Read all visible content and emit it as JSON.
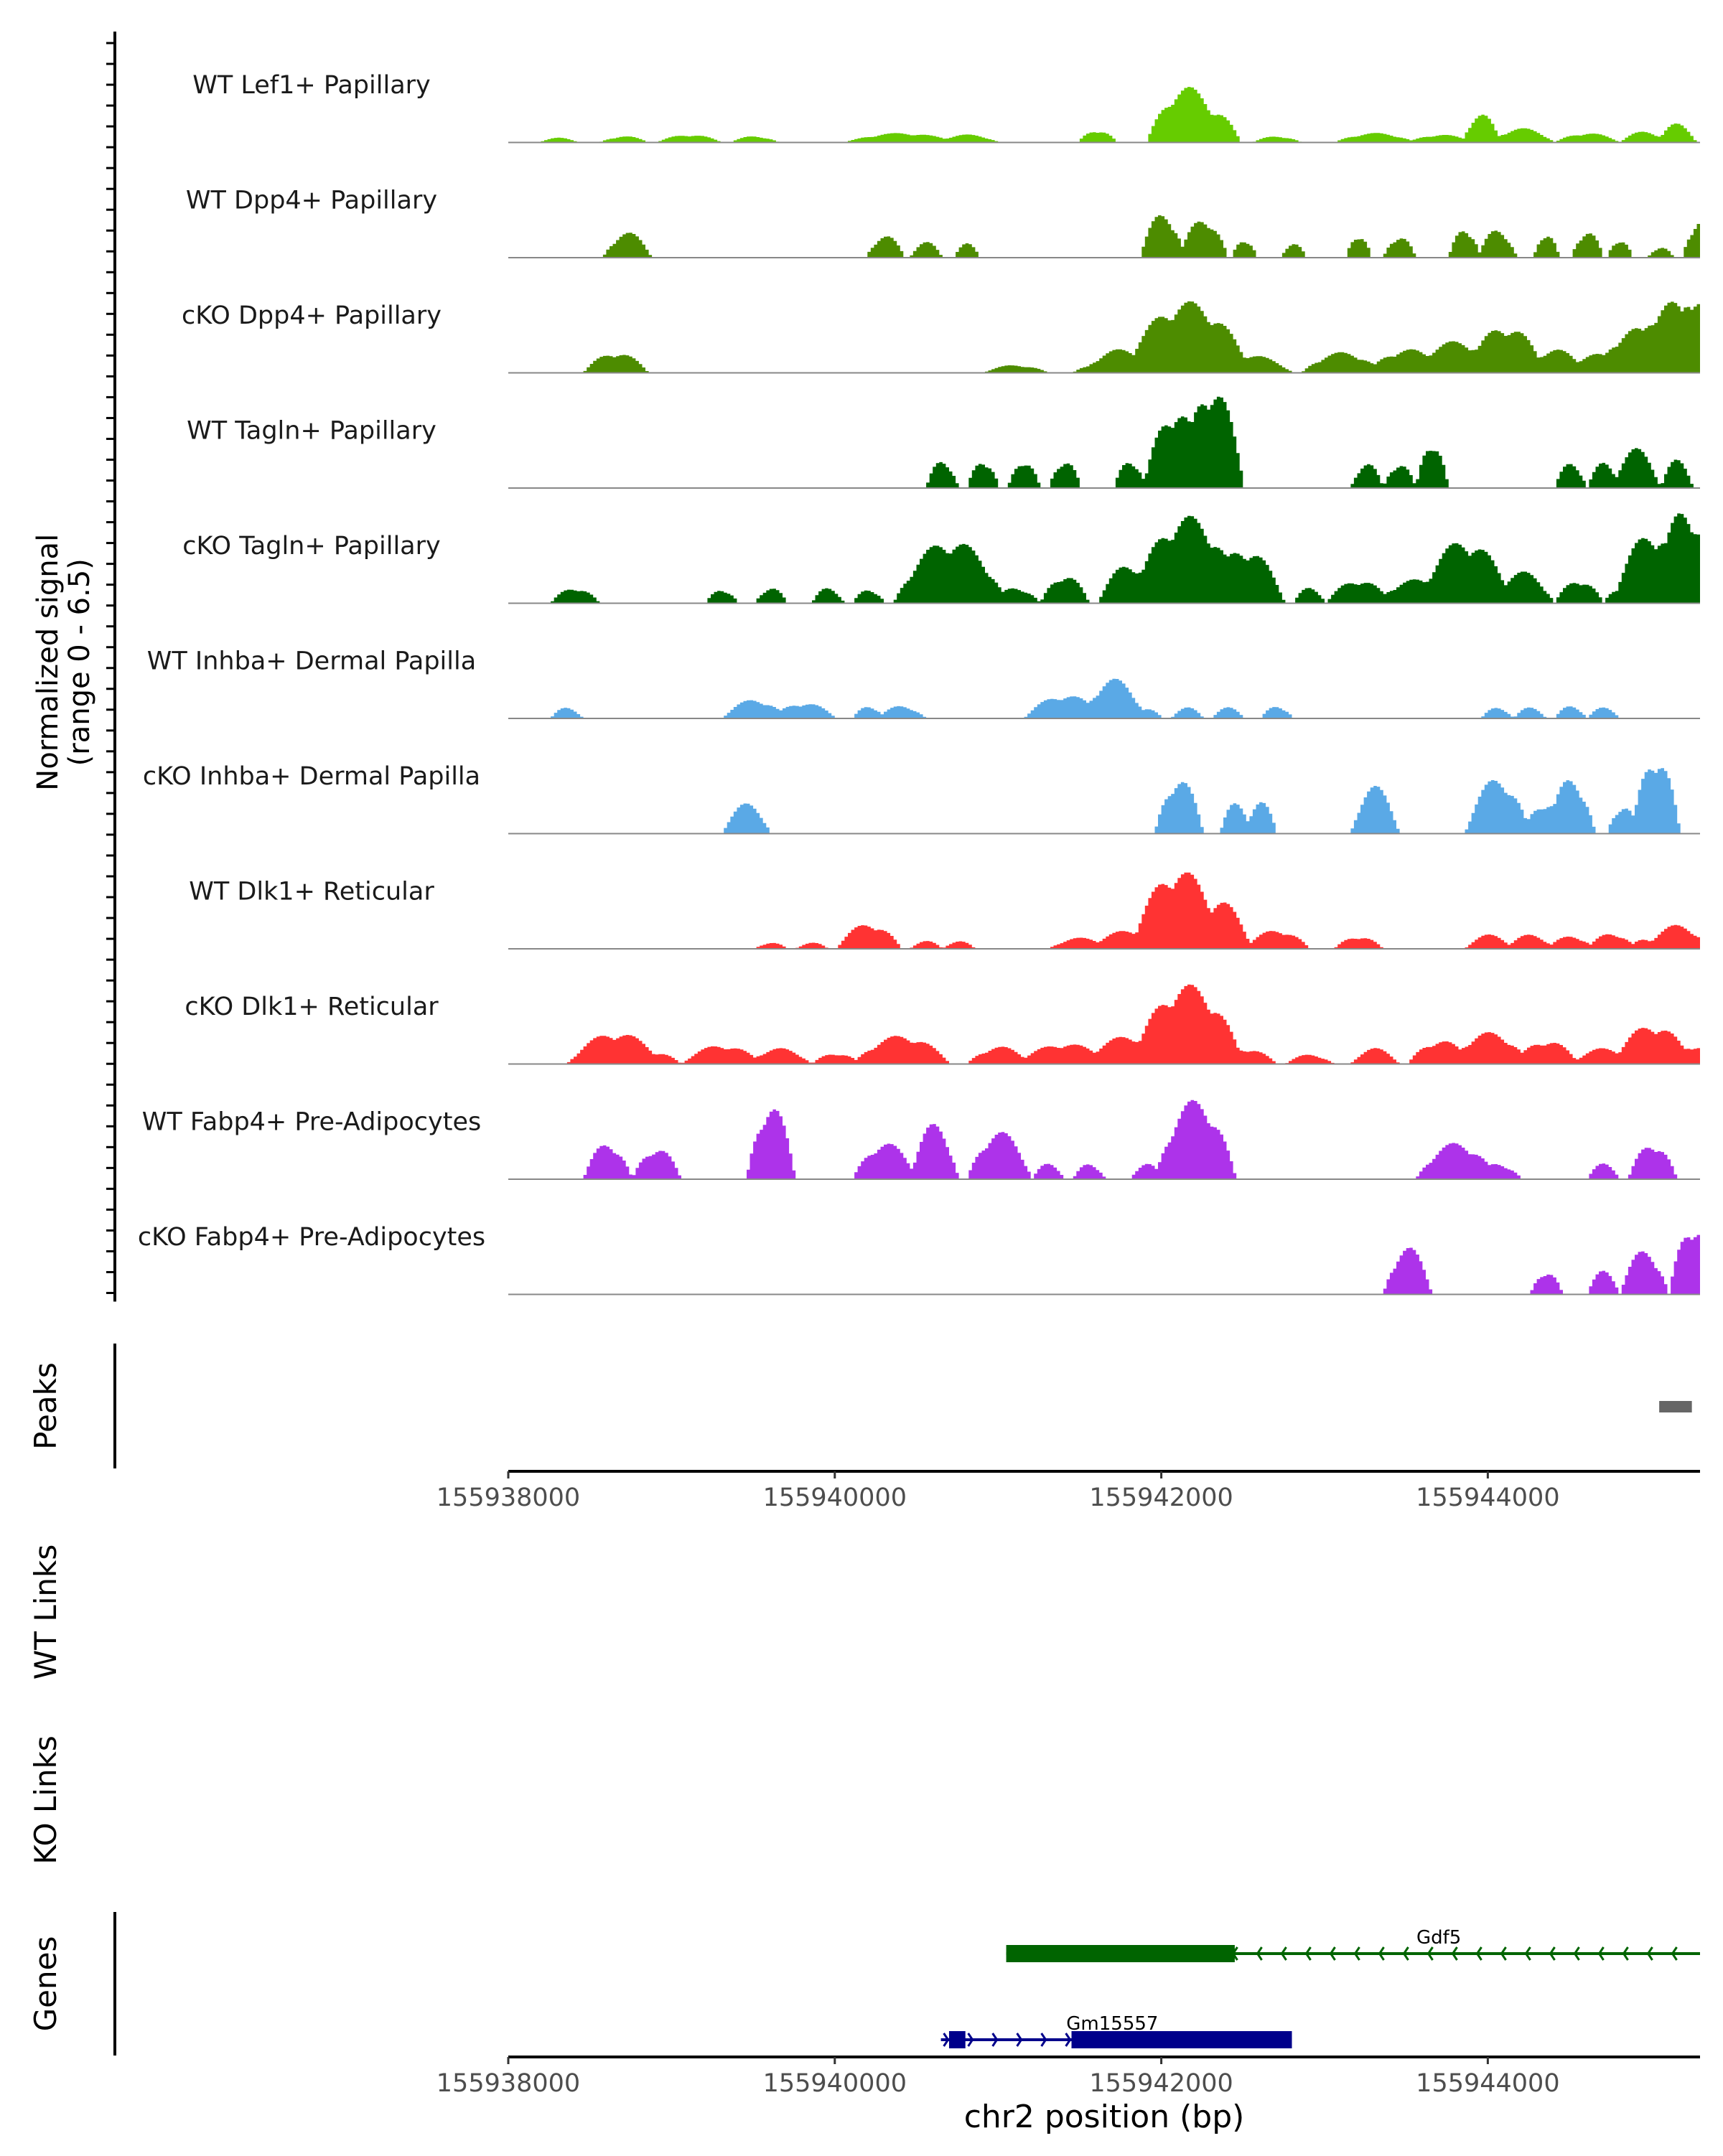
{
  "chart_data": {
    "type": "area",
    "title": "",
    "coverage": {
      "ylabel_line1": "Normalized signal",
      "ylabel_line2": "(range 0 - 6.5)",
      "ylim": [
        0,
        6.5
      ],
      "xlim": [
        155938000,
        155945300
      ],
      "tracks": [
        {
          "name": "WT Lef1+ Papillary",
          "color": "#66cc00",
          "peaks": [
            [
              155938300,
              0.3,
              120
            ],
            [
              155938700,
              0.4,
              150
            ],
            [
              155939100,
              0.5,
              200
            ],
            [
              155939500,
              0.4,
              150
            ],
            [
              155940400,
              0.6,
              350
            ],
            [
              155940800,
              0.5,
              200
            ],
            [
              155941600,
              0.8,
              120
            ],
            [
              155942150,
              3.5,
              250
            ],
            [
              155942300,
              2.0,
              180
            ],
            [
              155942700,
              0.4,
              150
            ],
            [
              155943300,
              0.6,
              250
            ],
            [
              155943700,
              0.5,
              200
            ],
            [
              155943950,
              1.8,
              120
            ],
            [
              155944200,
              0.9,
              200
            ],
            [
              155944600,
              0.6,
              200
            ],
            [
              155944950,
              0.7,
              150
            ],
            [
              155945150,
              1.2,
              120
            ]
          ]
        },
        {
          "name": "WT Dpp4+ Papillary",
          "color": "#4d8c00",
          "peaks": [
            [
              155938720,
              1.6,
              150
            ],
            [
              155940300,
              1.4,
              120
            ],
            [
              155940550,
              1.0,
              100
            ],
            [
              155940800,
              0.9,
              80
            ],
            [
              155942000,
              2.8,
              140
            ],
            [
              155942250,
              2.5,
              150
            ],
            [
              155942500,
              1.2,
              80
            ],
            [
              155942800,
              0.9,
              80
            ],
            [
              155943200,
              1.5,
              80
            ],
            [
              155943450,
              1.4,
              100
            ],
            [
              155943850,
              1.9,
              100
            ],
            [
              155944050,
              1.8,
              120
            ],
            [
              155944350,
              1.6,
              80
            ],
            [
              155944600,
              1.7,
              100
            ],
            [
              155944800,
              1.2,
              80
            ],
            [
              155945050,
              0.7,
              80
            ],
            [
              155945300,
              2.5,
              120
            ]
          ]
        },
        {
          "name": "cKO Dpp4+ Papillary",
          "color": "#4d8c00",
          "peaks": [
            [
              155938650,
              1.3,
              200
            ],
            [
              155941100,
              0.5,
              200
            ],
            [
              155941550,
              0.4,
              100
            ],
            [
              155941750,
              1.5,
              250
            ],
            [
              155942150,
              4.5,
              400
            ],
            [
              155942500,
              1.2,
              300
            ],
            [
              155943100,
              1.3,
              250
            ],
            [
              155943500,
              1.5,
              250
            ],
            [
              155943800,
              2.0,
              300
            ],
            [
              155944100,
              3.0,
              250
            ],
            [
              155944400,
              1.5,
              200
            ],
            [
              155944650,
              1.2,
              200
            ],
            [
              155944900,
              2.8,
              250
            ],
            [
              155945100,
              4.5,
              250
            ],
            [
              155945250,
              5.2,
              150
            ]
          ]
        },
        {
          "name": "WT Tagln+ Papillary",
          "color": "#006400",
          "peaks": [
            [
              155940650,
              1.8,
              100
            ],
            [
              155940900,
              1.8,
              100
            ],
            [
              155941150,
              1.8,
              100
            ],
            [
              155941400,
              1.8,
              100
            ],
            [
              155941800,
              1.8,
              100
            ],
            [
              155942080,
              5.0,
              200
            ],
            [
              155942300,
              6.5,
              200
            ],
            [
              155943250,
              1.6,
              100
            ],
            [
              155943450,
              1.6,
              100
            ],
            [
              155943650,
              3.0,
              100
            ],
            [
              155944500,
              1.6,
              100
            ],
            [
              155944700,
              1.6,
              100
            ],
            [
              155944900,
              2.5,
              150
            ],
            [
              155945150,
              1.8,
              100
            ]
          ]
        },
        {
          "name": "cKO Tagln+ Papillary",
          "color": "#006400",
          "peaks": [
            [
              155938400,
              1.0,
              150
            ],
            [
              155939300,
              0.9,
              100
            ],
            [
              155939600,
              1.0,
              100
            ],
            [
              155939950,
              1.0,
              100
            ],
            [
              155940200,
              0.9,
              100
            ],
            [
              155940700,
              4.0,
              350
            ],
            [
              155941100,
              1.0,
              150
            ],
            [
              155941400,
              1.8,
              150
            ],
            [
              155941800,
              2.5,
              200
            ],
            [
              155942150,
              5.5,
              350
            ],
            [
              155942500,
              3.5,
              250
            ],
            [
              155942900,
              1.0,
              100
            ],
            [
              155943200,
              1.5,
              200
            ],
            [
              155943550,
              1.5,
              250
            ],
            [
              155943850,
              4.0,
              300
            ],
            [
              155944200,
              2.0,
              200
            ],
            [
              155944550,
              1.5,
              150
            ],
            [
              155944800,
              1.0,
              100
            ],
            [
              155945000,
              4.5,
              250
            ],
            [
              155945200,
              6.0,
              200
            ]
          ]
        },
        {
          "name": "WT Inhba+ Dermal Papilla",
          "color": "#5aa9e6",
          "peaks": [
            [
              155938350,
              0.7,
              100
            ],
            [
              155939500,
              1.2,
              200
            ],
            [
              155939800,
              1.0,
              200
            ],
            [
              155940200,
              0.8,
              100
            ],
            [
              155940400,
              0.8,
              150
            ],
            [
              155941400,
              1.5,
              250
            ],
            [
              155941700,
              2.5,
              200
            ],
            [
              155941900,
              0.6,
              100
            ],
            [
              155942150,
              0.7,
              100
            ],
            [
              155942400,
              0.7,
              100
            ],
            [
              155942700,
              0.8,
              100
            ],
            [
              155944050,
              0.7,
              100
            ],
            [
              155944250,
              0.7,
              100
            ],
            [
              155944500,
              0.8,
              100
            ],
            [
              155944700,
              0.7,
              100
            ]
          ]
        },
        {
          "name": "cKO Inhba+ Dermal Papilla",
          "color": "#5aa9e6",
          "peaks": [
            [
              155939450,
              1.9,
              150
            ],
            [
              155942100,
              3.5,
              150
            ],
            [
              155942450,
              2.0,
              100
            ],
            [
              155942600,
              2.0,
              100
            ],
            [
              155943300,
              3.0,
              150
            ],
            [
              155944050,
              3.5,
              200
            ],
            [
              155944350,
              2.0,
              150
            ],
            [
              155944500,
              3.5,
              150
            ],
            [
              155944820,
              1.8,
              100
            ],
            [
              155945020,
              5.0,
              150
            ]
          ]
        },
        {
          "name": "WT Dlk1+ Reticular",
          "color": "#ff3333",
          "peaks": [
            [
              155939600,
              0.4,
              100
            ],
            [
              155939850,
              0.4,
              100
            ],
            [
              155940200,
              1.6,
              200
            ],
            [
              155940550,
              0.5,
              100
            ],
            [
              155940750,
              0.5,
              100
            ],
            [
              155941500,
              0.7,
              200
            ],
            [
              155941800,
              1.2,
              250
            ],
            [
              155942100,
              5.0,
              300
            ],
            [
              155942350,
              3.0,
              200
            ],
            [
              155942700,
              1.2,
              200
            ],
            [
              155943200,
              0.8,
              150
            ],
            [
              155944000,
              0.9,
              150
            ],
            [
              155944250,
              0.9,
              150
            ],
            [
              155944500,
              0.8,
              150
            ],
            [
              155944750,
              1.0,
              150
            ],
            [
              155944950,
              0.6,
              100
            ],
            [
              155945150,
              1.5,
              200
            ]
          ]
        },
        {
          "name": "cKO Dlk1+ Reticular",
          "color": "#ff3333",
          "peaks": [
            [
              155938650,
              2.0,
              300
            ],
            [
              155938900,
              0.7,
              150
            ],
            [
              155939300,
              1.2,
              250
            ],
            [
              155939650,
              1.0,
              200
            ],
            [
              155940000,
              0.7,
              150
            ],
            [
              155940400,
              1.8,
              300
            ],
            [
              155941000,
              1.1,
              200
            ],
            [
              155941400,
              1.3,
              300
            ],
            [
              155941800,
              1.8,
              300
            ],
            [
              155942150,
              5.0,
              350
            ],
            [
              155942500,
              1.0,
              200
            ],
            [
              155942900,
              0.6,
              150
            ],
            [
              155943300,
              1.0,
              150
            ],
            [
              155943700,
              1.5,
              200
            ],
            [
              155944000,
              2.0,
              250
            ],
            [
              155944350,
              1.5,
              200
            ],
            [
              155944700,
              1.0,
              200
            ],
            [
              155945000,
              2.5,
              250
            ],
            [
              155945250,
              1.2,
              150
            ]
          ]
        },
        {
          "name": "WT Fabp4+ Pre-Adipocytes",
          "color": "#ad33ea",
          "peaks": [
            [
              155938600,
              2.3,
              150
            ],
            [
              155938900,
              2.0,
              150
            ],
            [
              155939600,
              4.7,
              150
            ],
            [
              155940300,
              2.3,
              200
            ],
            [
              155940600,
              3.5,
              150
            ],
            [
              155941000,
              3.0,
              200
            ],
            [
              155941300,
              1.0,
              100
            ],
            [
              155941550,
              1.0,
              100
            ],
            [
              155941900,
              1.0,
              100
            ],
            [
              155942200,
              5.0,
              250
            ],
            [
              155943800,
              2.3,
              250
            ],
            [
              155944050,
              1.0,
              150
            ],
            [
              155944700,
              1.0,
              100
            ],
            [
              155945000,
              2.3,
              150
            ]
          ]
        },
        {
          "name": "cKO Fabp4+ Pre-Adipocytes",
          "color": "#ad33ea",
          "peaks": [
            [
              155943500,
              3.0,
              150
            ],
            [
              155944350,
              1.5,
              100
            ],
            [
              155944700,
              1.5,
              100
            ],
            [
              155944950,
              2.8,
              150
            ],
            [
              155945250,
              4.5,
              150
            ]
          ]
        }
      ]
    },
    "peaks_track": {
      "label": "Peaks",
      "color": "#666666",
      "regions": [
        [
          155945050,
          155945250
        ]
      ]
    },
    "x_axis": {
      "ticks": [
        155938000,
        155940000,
        155942000,
        155944000
      ]
    },
    "wt_links": {
      "label": "WT Links",
      "links": []
    },
    "ko_links": {
      "label": "KO Links",
      "links": []
    },
    "genes_track": {
      "label": "Genes",
      "xlabel": "chr2 position (bp)",
      "genes": [
        {
          "name": "Gdf5",
          "strand": "-",
          "start": 155941050,
          "end": 155945300,
          "cds": [
            155941050,
            155942450
          ],
          "color": "#006400"
        },
        {
          "name": "Gm15557",
          "strand": "+",
          "start": 155940650,
          "end": 155942800,
          "cds": [
            155941450,
            155942800
          ],
          "utr": [
            155940700,
            155940800
          ],
          "color": "#00008b"
        }
      ]
    }
  }
}
